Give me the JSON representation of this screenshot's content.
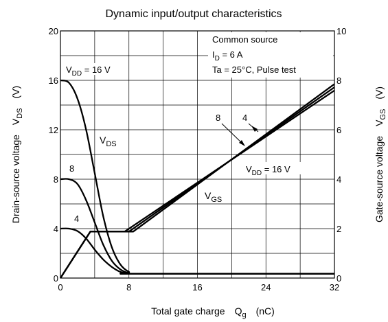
{
  "chart_data": {
    "type": "line",
    "title": "Dynamic input/output characteristics",
    "xlabel": {
      "main": "Total gate charge",
      "symbol": "Q",
      "sub": "g",
      "unit": "(nC)"
    },
    "ylabel_left": {
      "main": "Drain-source voltage",
      "symbol": "V",
      "sub": "DS",
      "unit": "(V)"
    },
    "ylabel_right": {
      "main": "Gate-source voltage",
      "symbol": "V",
      "sub": "GS",
      "unit": "(V)"
    },
    "xlim": [
      0,
      32
    ],
    "ylim_left": [
      0,
      20
    ],
    "ylim_right": [
      0,
      10
    ],
    "grid": true,
    "x_ticks": [
      "0",
      "8",
      "16",
      "24",
      "32"
    ],
    "y_left_ticks": [
      "0",
      "4",
      "8",
      "12",
      "16",
      "20"
    ],
    "y_right_ticks": [
      "0",
      "2",
      "4",
      "6",
      "8",
      "10"
    ],
    "conditions": {
      "line1": "Common source",
      "line2": {
        "symbol": "I",
        "sub": "D",
        "rest": " = 6 A"
      },
      "line3": "Ta = 25°C, Pulse test"
    },
    "annotations": {
      "vdd16_top": {
        "symbol": "V",
        "sub": "DD",
        "rest": " = 16 V"
      },
      "vdd16_vgs": {
        "symbol": "V",
        "sub": "DD",
        "rest": " = 16 V"
      },
      "vds_label": {
        "symbol": "V",
        "sub": "DS"
      },
      "vgs_label": {
        "symbol": "V",
        "sub": "GS"
      },
      "vds_8": "8",
      "vds_4": "4",
      "vgs_8": "8",
      "vgs_4": "4"
    },
    "series": [
      {
        "axis": "left",
        "x": [
          0,
          1,
          2,
          3,
          4,
          5,
          6,
          7,
          8,
          9,
          32
        ],
        "y": [
          16,
          15.8,
          14.5,
          12,
          8.5,
          5,
          2.5,
          1.1,
          0.5,
          0.35,
          0.35
        ]
      },
      {
        "axis": "left",
        "x": [
          0,
          1,
          2,
          3,
          4,
          5,
          6,
          7,
          8,
          9,
          32
        ],
        "y": [
          8,
          8,
          7.6,
          6.3,
          4.5,
          2.7,
          1.4,
          0.7,
          0.4,
          0.35,
          0.35
        ]
      },
      {
        "axis": "left",
        "x": [
          0,
          1,
          2,
          3,
          4,
          5,
          6,
          7,
          8,
          9,
          32
        ],
        "y": [
          4,
          4,
          3.8,
          3.2,
          2.3,
          1.5,
          0.9,
          0.5,
          0.35,
          0.35,
          0.35
        ]
      },
      {
        "axis": "right",
        "x": [
          0,
          3.5,
          6.5,
          8.5,
          32
        ],
        "y": [
          0,
          1.88,
          1.88,
          1.88,
          7.85
        ]
      },
      {
        "axis": "right",
        "x": [
          0,
          3.5,
          6.5,
          8,
          32
        ],
        "y": [
          0,
          1.88,
          1.88,
          1.88,
          7.72
        ]
      },
      {
        "axis": "right",
        "x": [
          0,
          3.5,
          6.5,
          7.5,
          32
        ],
        "y": [
          0,
          1.88,
          1.88,
          1.88,
          7.59
        ]
      }
    ]
  }
}
